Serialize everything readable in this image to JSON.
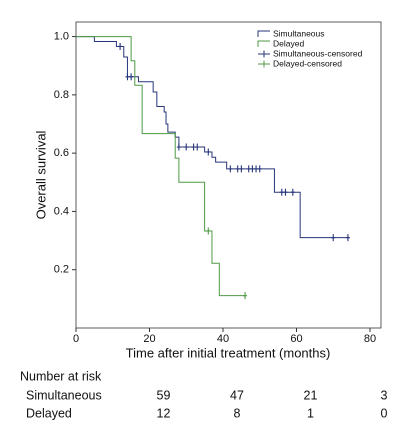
{
  "chart_data": {
    "type": "step",
    "xlabel": "Time after initial treatment (months)",
    "ylabel": "Overall survival",
    "xlim": [
      0,
      83
    ],
    "ylim": [
      0,
      1.05
    ],
    "xticks": [
      0,
      20,
      40,
      60,
      80
    ],
    "yticks": [
      0.2,
      0.4,
      0.6,
      0.8,
      {
        "value": 1.0,
        "label": "1.0"
      }
    ],
    "series": [
      {
        "name": "Simultaneous",
        "color": "#27357a",
        "marker": "step",
        "x": [
          0,
          5,
          11,
          13,
          14,
          17,
          21,
          22,
          24,
          24.5,
          25,
          27,
          28,
          35,
          37,
          38,
          41,
          54,
          61,
          74
        ],
        "values": [
          1.0,
          0.983,
          0.966,
          0.93,
          0.862,
          0.845,
          0.81,
          0.76,
          0.741,
          0.7,
          0.672,
          0.655,
          0.621,
          0.604,
          0.586,
          0.569,
          0.546,
          0.466,
          0.31,
          0.31
        ]
      },
      {
        "name": "Delayed",
        "color": "#4f9a45",
        "marker": "step",
        "x": [
          0,
          15,
          16,
          18,
          27,
          28,
          35,
          37,
          39,
          46
        ],
        "values": [
          1.0,
          0.917,
          0.833,
          0.667,
          0.583,
          0.5,
          0.333,
          0.222,
          0.111,
          0.111
        ]
      },
      {
        "name": "Simultaneous-censored",
        "color": "#27357a",
        "marker": "plus",
        "x": [
          12,
          14,
          15,
          28,
          30,
          32,
          33,
          36,
          42,
          44,
          45,
          47,
          48,
          49,
          50,
          56,
          57,
          59,
          70,
          74
        ],
        "values": [
          0.966,
          0.862,
          0.862,
          0.621,
          0.621,
          0.621,
          0.621,
          0.604,
          0.546,
          0.546,
          0.546,
          0.546,
          0.546,
          0.546,
          0.546,
          0.466,
          0.466,
          0.466,
          0.31,
          0.31
        ]
      },
      {
        "name": "Delayed-censored",
        "color": "#4f9a45",
        "marker": "plus",
        "x": [
          36,
          46
        ],
        "values": [
          0.333,
          0.111
        ]
      }
    ],
    "risk_table": {
      "title": "Number at risk",
      "rows": [
        {
          "name": "Simultaneous",
          "values": [
            59,
            47,
            21,
            3
          ]
        },
        {
          "name": "Delayed",
          "values": [
            12,
            8,
            1,
            0
          ]
        }
      ]
    }
  }
}
